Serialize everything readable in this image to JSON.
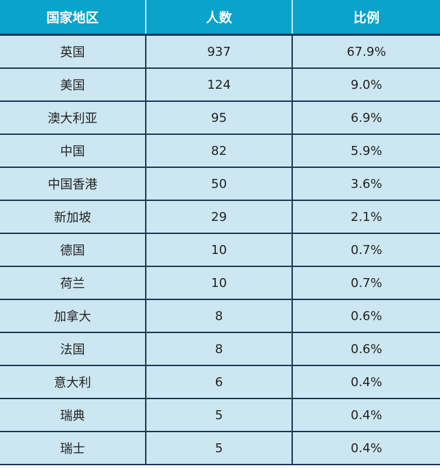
{
  "chart_data": {
    "type": "table",
    "columns": [
      "国家地区",
      "人数",
      "比例"
    ],
    "rows": [
      [
        "英国",
        "937",
        "67.9%"
      ],
      [
        "美国",
        "124",
        "9.0%"
      ],
      [
        "澳大利亚",
        "95",
        "6.9%"
      ],
      [
        "中国",
        "82",
        "5.9%"
      ],
      [
        "中国香港",
        "50",
        "3.6%"
      ],
      [
        "新加坡",
        "29",
        "2.1%"
      ],
      [
        "德国",
        "10",
        "0.7%"
      ],
      [
        "荷兰",
        "10",
        "0.7%"
      ],
      [
        "加拿大",
        "8",
        "0.6%"
      ],
      [
        "法国",
        "8",
        "0.6%"
      ],
      [
        "意大利",
        "6",
        "0.4%"
      ],
      [
        "瑞典",
        "5",
        "0.4%"
      ],
      [
        "瑞士",
        "5",
        "0.4%"
      ]
    ],
    "colors": {
      "header": "#0aa3cc",
      "row": "#cce7f1",
      "border": "#1d3557"
    }
  }
}
